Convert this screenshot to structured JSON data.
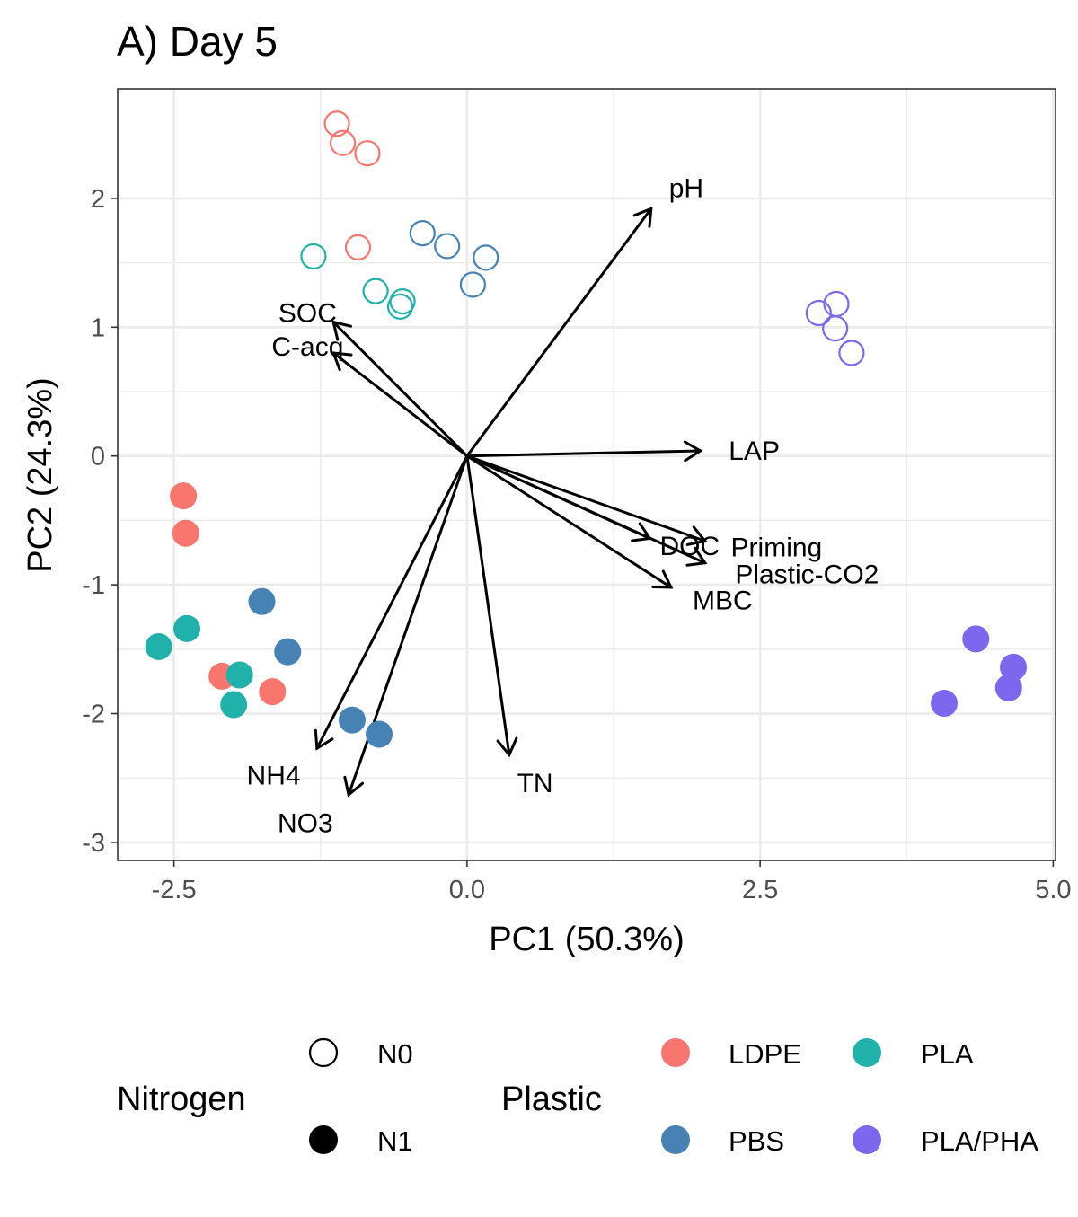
{
  "chart_data": {
    "type": "scatter",
    "subtype": "pca-biplot",
    "title": "A) Day 5",
    "xlabel": "PC1 (50.3%)",
    "ylabel": "PC2 (24.3%)",
    "xlim": [
      -2.98,
      5.02
    ],
    "ylim": [
      -3.14,
      2.85
    ],
    "x_ticks": [
      -2.5,
      0.0,
      2.5,
      5.0
    ],
    "x_tick_labels": [
      "-2.5",
      "0.0",
      "2.5",
      "5.0"
    ],
    "y_ticks": [
      -3,
      -2,
      -1,
      0,
      1,
      2
    ],
    "y_tick_labels": [
      "-3",
      "-2",
      "-1",
      "0",
      "1",
      "2"
    ],
    "grid": true,
    "legend_position": "bottom",
    "colors": {
      "LDPE": "#F8766D",
      "PBS": "#4682B4",
      "PLA": "#20B2AA",
      "PLA/PHA": "#7B68EE",
      "arrow": "#000000",
      "grid": "#EBEBEB",
      "panel_border": "#333333"
    },
    "series": [
      {
        "name": "LDPE",
        "nitrogen": "N0",
        "shape": "open-circle",
        "points": [
          [
            -1.11,
            2.58
          ],
          [
            -1.06,
            2.43
          ],
          [
            -0.85,
            2.35
          ],
          [
            -0.93,
            1.62
          ]
        ]
      },
      {
        "name": "PBS",
        "nitrogen": "N0",
        "shape": "open-circle",
        "points": [
          [
            -0.38,
            1.73
          ],
          [
            -0.17,
            1.63
          ],
          [
            0.16,
            1.54
          ],
          [
            0.05,
            1.33
          ]
        ]
      },
      {
        "name": "PLA",
        "nitrogen": "N0",
        "shape": "open-circle",
        "points": [
          [
            -1.31,
            1.55
          ],
          [
            -0.78,
            1.28
          ],
          [
            -0.55,
            1.2
          ],
          [
            -0.57,
            1.16
          ]
        ]
      },
      {
        "name": "PLA/PHA",
        "nitrogen": "N0",
        "shape": "open-circle",
        "points": [
          [
            3.0,
            1.11
          ],
          [
            3.15,
            1.18
          ],
          [
            3.14,
            0.99
          ],
          [
            3.28,
            0.8
          ]
        ]
      },
      {
        "name": "LDPE",
        "nitrogen": "N1",
        "shape": "filled-circle",
        "points": [
          [
            -2.42,
            -0.31
          ],
          [
            -2.4,
            -0.6
          ],
          [
            -2.09,
            -1.71
          ],
          [
            -1.66,
            -1.83
          ]
        ]
      },
      {
        "name": "PBS",
        "nitrogen": "N1",
        "shape": "filled-circle",
        "points": [
          [
            -1.75,
            -1.13
          ],
          [
            -1.53,
            -1.52
          ],
          [
            -0.98,
            -2.05
          ],
          [
            -0.75,
            -2.16
          ]
        ]
      },
      {
        "name": "PLA",
        "nitrogen": "N1",
        "shape": "filled-circle",
        "points": [
          [
            -2.63,
            -1.48
          ],
          [
            -2.39,
            -1.34
          ],
          [
            -1.94,
            -1.7
          ],
          [
            -1.99,
            -1.93
          ]
        ]
      },
      {
        "name": "PLA/PHA",
        "nitrogen": "N1",
        "shape": "filled-circle",
        "points": [
          [
            4.34,
            -1.42
          ],
          [
            4.66,
            -1.64
          ],
          [
            4.62,
            -1.8
          ],
          [
            4.07,
            -1.92
          ]
        ]
      }
    ],
    "loadings": [
      {
        "label": "pH",
        "x": 1.57,
        "y": 1.92,
        "label_x": 1.87,
        "label_y": 2.08
      },
      {
        "label": "SOC",
        "x": -1.14,
        "y": 1.04,
        "label_x": -1.36,
        "label_y": 1.11
      },
      {
        "label": "C-acq",
        "x": -1.14,
        "y": 0.8,
        "label_x": -1.36,
        "label_y": 0.85
      },
      {
        "label": "LAP",
        "x": 1.99,
        "y": 0.04,
        "label_x": 2.45,
        "label_y": 0.04
      },
      {
        "label": "DOC",
        "x": 1.56,
        "y": -0.64,
        "label_x": 1.9,
        "label_y": -0.7
      },
      {
        "label": "Priming",
        "x": 2.03,
        "y": -0.66,
        "label_x": 2.64,
        "label_y": -0.71
      },
      {
        "label": "Plastic-CO2",
        "x": 2.03,
        "y": -0.83,
        "label_x": 2.9,
        "label_y": -0.92
      },
      {
        "label": "MBC",
        "x": 1.74,
        "y": -1.02,
        "label_x": 2.18,
        "label_y": -1.12
      },
      {
        "label": "NH4",
        "x": -1.28,
        "y": -2.27,
        "label_x": -1.65,
        "label_y": -2.48
      },
      {
        "label": "NO3",
        "x": -1.01,
        "y": -2.63,
        "label_x": -1.38,
        "label_y": -2.85
      },
      {
        "label": "TN",
        "x": 0.36,
        "y": -2.32,
        "label_x": 0.58,
        "label_y": -2.54
      }
    ],
    "legend": {
      "nitrogen_title": "Nitrogen",
      "nitrogen": [
        {
          "label": "N0",
          "shape": "open-circle"
        },
        {
          "label": "N1",
          "shape": "filled-circle"
        }
      ],
      "plastic_title": "Plastic",
      "plastic": [
        {
          "label": "LDPE",
          "color": "#F8766D"
        },
        {
          "label": "PLA",
          "color": "#20B2AA"
        },
        {
          "label": "PBS",
          "color": "#4682B4"
        },
        {
          "label": "PLA/PHA",
          "color": "#7B68EE"
        }
      ]
    }
  }
}
